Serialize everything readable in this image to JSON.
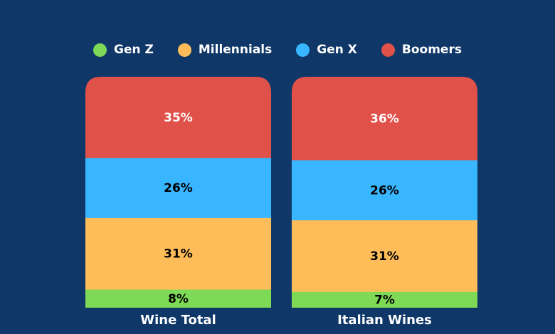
{
  "chart_data": {
    "type": "bar",
    "stacked": true,
    "percent": true,
    "categories": [
      "Wine Total",
      "Italian Wines"
    ],
    "series": [
      {
        "name": "Gen Z",
        "color": "#7ed957",
        "values": [
          8,
          7
        ],
        "labels": [
          "8%",
          "7%"
        ]
      },
      {
        "name": "Millennials",
        "color": "#ffbd59",
        "values": [
          31,
          31
        ],
        "labels": [
          "31%",
          "31%"
        ]
      },
      {
        "name": "Gen X",
        "color": "#38b6ff",
        "values": [
          26,
          26
        ],
        "labels": [
          "26%",
          "26%"
        ]
      },
      {
        "name": "Boomers",
        "color": "#e0514a",
        "values": [
          35,
          36
        ],
        "labels": [
          "35%",
          "36%"
        ]
      }
    ],
    "legend_position": "top",
    "grid": false
  }
}
